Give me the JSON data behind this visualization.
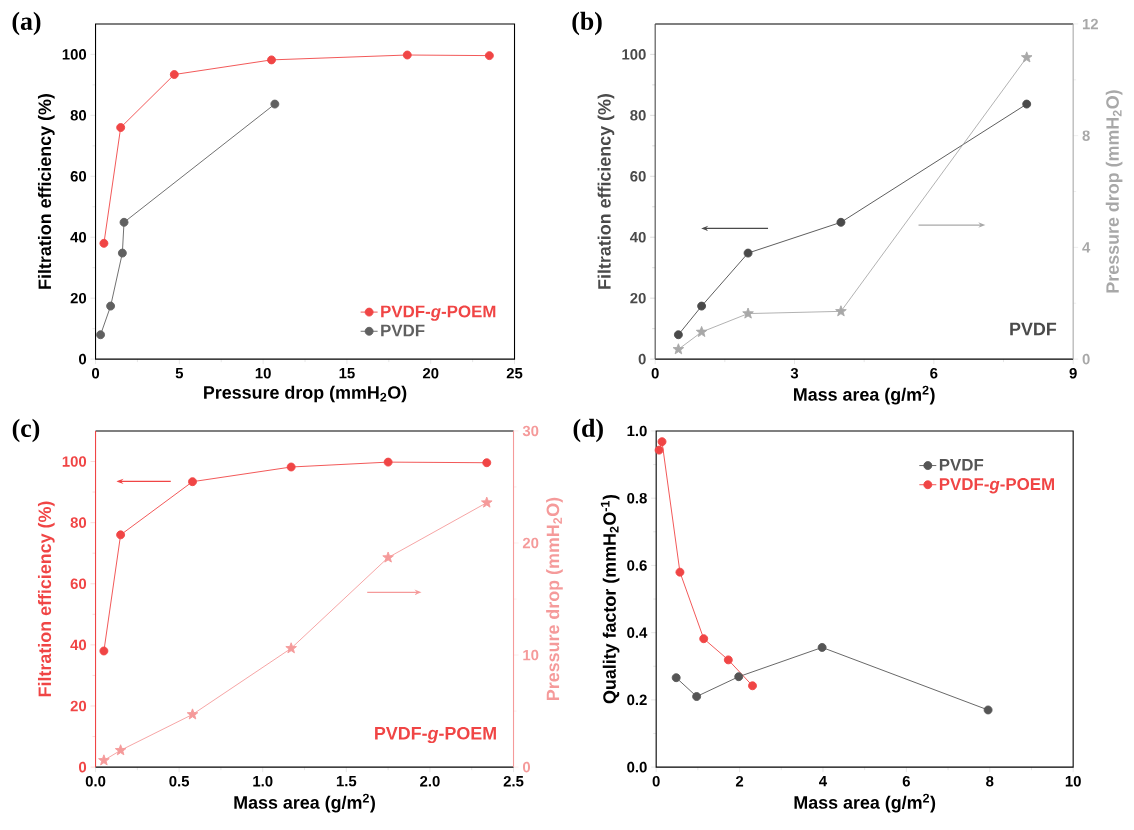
{
  "chart_data": [
    {
      "type": "line",
      "title": "(a)",
      "xlabel": "Pressure drop (mmH$_{2}$O)",
      "ylabel": "Filtration efficiency (%)",
      "xlim": [
        0,
        25
      ],
      "ylim": [
        0,
        110
      ],
      "xticks": [
        0,
        5,
        10,
        15,
        20,
        25
      ],
      "yticks": [
        0,
        20,
        40,
        60,
        80,
        100
      ],
      "marker": "circle",
      "legend": "bottom right",
      "series": [
        {
          "name": "PVDF-*g*-POEM",
          "color": "#f04545",
          "x": [
            0.5,
            1.5,
            4.7,
            10.5,
            18.6,
            23.5
          ],
          "values": [
            38,
            76,
            93.4,
            98.2,
            99.8,
            99.6
          ]
        },
        {
          "name": "PVDF",
          "color": "#606060",
          "x": [
            0.3,
            0.9,
            1.6,
            1.7,
            10.7
          ],
          "values": [
            8,
            17.4,
            34.8,
            44.9,
            83.7
          ]
        }
      ]
    },
    {
      "type": "line",
      "title": "(b)",
      "xlabel": "Mass area (g/m$^{2}$)",
      "ylabel": "Filtration efficiency (%)",
      "y2label": "Pressure drop (mmH$_{2}$O)",
      "xlim": [
        0,
        9
      ],
      "ylim": [
        0,
        110
      ],
      "y2lim": [
        0,
        12
      ],
      "xticks": [
        0,
        3,
        6,
        9
      ],
      "yticks": [
        0,
        20,
        40,
        60,
        80,
        100
      ],
      "y2ticks": [
        0,
        4,
        8,
        12
      ],
      "marker": "circle",
      "annotations": [
        "PVDF"
      ],
      "series": [
        {
          "color": "#4a4a4a",
          "x": [
            0.5,
            1,
            2,
            4,
            8
          ],
          "values": [
            8,
            17.4,
            34.8,
            44.9,
            83.7
          ]
        },
        {
          "color": "#a8a8a8",
          "axis": "y2",
          "marker": "star",
          "x": [
            0.5,
            1,
            2,
            4,
            8
          ],
          "values": [
            0.35,
            0.97,
            1.63,
            1.71,
            10.8
          ]
        }
      ]
    },
    {
      "type": "line",
      "title": "(c)",
      "xlabel": "Mass area (g/m$^{2}$)",
      "ylabel": "Filtration efficiency (%)",
      "y2label": "Pressure drop (mmH$_{2}$O)",
      "xlim": [
        0,
        2.5
      ],
      "ylim": [
        0,
        110
      ],
      "y2lim": [
        0,
        30
      ],
      "xticks": [
        {
          "value": 0,
          "label": "0.0"
        },
        0.5,
        {
          "value": 1,
          "label": "1.0"
        },
        1.5,
        {
          "value": 2,
          "label": "2.0"
        },
        2.5
      ],
      "yticks": [
        0,
        20,
        40,
        60,
        80,
        100
      ],
      "y2ticks": [
        0,
        10,
        20,
        30
      ],
      "marker": "circle",
      "annotations": [
        "PVDF-*g*-POEM"
      ],
      "series": [
        {
          "color": "#f04545",
          "x": [
            0.05,
            0.15,
            0.58,
            1.17,
            1.75,
            2.34
          ],
          "values": [
            38,
            76,
            93.4,
            98.2,
            99.8,
            99.6
          ]
        },
        {
          "color": "#f59a9a",
          "axis": "y2",
          "marker": "star",
          "x": [
            0.05,
            0.15,
            0.58,
            1.17,
            1.75,
            2.34
          ],
          "values": [
            0.6,
            1.5,
            4.7,
            10.6,
            18.7,
            23.6
          ]
        }
      ]
    },
    {
      "type": "line",
      "title": "(d)",
      "xlabel": "Mass area (g/m$^{2}$)",
      "ylabel": "Quality factor (mmH$_{2}$O$^{-1}$)",
      "xlim": [
        0,
        10
      ],
      "ylim": [
        0,
        1
      ],
      "xticks": [
        0,
        2,
        4,
        6,
        8,
        10
      ],
      "yticks": [
        {
          "value": 0,
          "label": "0.0"
        },
        0.2,
        0.4,
        0.6,
        0.8,
        {
          "value": 1,
          "label": "1.0"
        }
      ],
      "marker": "circle",
      "legend": "top right",
      "series": [
        {
          "name": "PVDF",
          "color": "#555555",
          "x": [
            0.48,
            0.97,
            1.98,
            3.98,
            7.96
          ],
          "values": [
            0.266,
            0.21,
            0.269,
            0.356,
            0.17
          ]
        },
        {
          "name": "PVDF-*g*-POEM",
          "color": "#f04545",
          "x": [
            0.07,
            0.14,
            0.57,
            1.14,
            1.73,
            2.31
          ],
          "values": [
            0.943,
            0.968,
            0.58,
            0.382,
            0.319,
            0.242
          ]
        }
      ]
    }
  ]
}
